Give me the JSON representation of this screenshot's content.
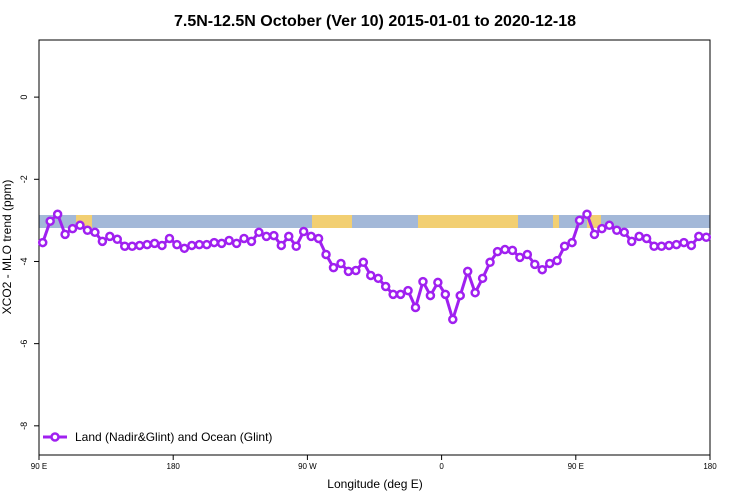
{
  "chart_data": {
    "type": "line",
    "title": "7.5N-12.5N October (Ver 10)   2015-01-01 to 2020-12-18",
    "x_label": "Longitude (deg E)",
    "y_label": "XCO2 - MLO trend (ppm)",
    "xlim": [
      90,
      540
    ],
    "ylim": [
      -8.71,
      1.39
    ],
    "xticks": [
      {
        "value": 90,
        "label": "90 E"
      },
      180,
      {
        "value": 270,
        "label": "90 W"
      },
      {
        "value": 360,
        "label": "0"
      },
      {
        "value": 450,
        "label": "90 E"
      },
      180
    ],
    "yticks": [
      0,
      -2,
      -4,
      -6,
      -8
    ],
    "legend": "bottom-left",
    "x": [
      92.5,
      97.5,
      102.5,
      107.5,
      112.5,
      117.5,
      122.5,
      127.5,
      132.5,
      137.5,
      142.5,
      147.5,
      152.5,
      157.5,
      162.5,
      167.5,
      172.5,
      177.5,
      182.5,
      187.5,
      192.5,
      197.5,
      202.5,
      207.5,
      212.5,
      217.5,
      222.5,
      227.5,
      232.5,
      237.5,
      242.5,
      247.5,
      252.5,
      257.5,
      262.5,
      267.5,
      272.5,
      277.5,
      282.5,
      287.5,
      292.5,
      297.5,
      302.5,
      307.5,
      312.5,
      317.5,
      322.5,
      327.5,
      332.5,
      337.5,
      342.5,
      347.5,
      352.5,
      357.5,
      362.5,
      367.5,
      372.5,
      377.5,
      382.5,
      387.5,
      392.5,
      397.5,
      402.5,
      407.5,
      412.5,
      417.5,
      422.5,
      427.5,
      432.5,
      437.5,
      442.5,
      447.5,
      452.5,
      457.5,
      462.5,
      467.5,
      472.5,
      477.5,
      482.5,
      487.5,
      492.5,
      497.5,
      502.5,
      507.5,
      512.5,
      517.5,
      522.5,
      527.5,
      532.5,
      537.5
    ],
    "series": [
      {
        "name": "Land (Nadir&Glint) and Ocean (Glint)",
        "color": "#a020f0",
        "values": [
          -3.54,
          -3.02,
          -2.85,
          -3.34,
          -3.2,
          -3.12,
          -3.24,
          -3.29,
          -3.51,
          -3.39,
          -3.46,
          -3.63,
          -3.63,
          -3.61,
          -3.59,
          -3.56,
          -3.61,
          -3.44,
          -3.59,
          -3.68,
          -3.61,
          -3.59,
          -3.59,
          -3.54,
          -3.56,
          -3.49,
          -3.56,
          -3.44,
          -3.51,
          -3.29,
          -3.39,
          -3.37,
          -3.61,
          -3.39,
          -3.63,
          -3.27,
          -3.39,
          -3.44,
          -3.83,
          -4.15,
          -4.05,
          -4.24,
          -4.22,
          -4.02,
          -4.34,
          -4.41,
          -4.61,
          -4.8,
          -4.8,
          -4.71,
          -5.12,
          -4.49,
          -4.83,
          -4.51,
          -4.8,
          -5.41,
          -4.83,
          -4.24,
          -4.76,
          -4.41,
          -4.02,
          -3.76,
          -3.71,
          -3.73,
          -3.9,
          -3.83,
          -4.07,
          -4.2,
          -4.05,
          -3.98,
          -3.63,
          -3.54,
          -3.0,
          -2.85,
          -3.34,
          -3.2,
          -3.12,
          -3.24,
          -3.29,
          -3.51,
          -3.39,
          -3.44,
          -3.63,
          -3.63,
          -3.61,
          -3.59,
          -3.54,
          -3.61,
          -3.39,
          -3.41
        ]
      }
    ]
  }
}
